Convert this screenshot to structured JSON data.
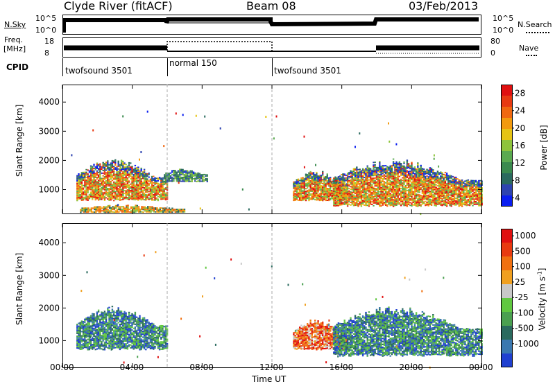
{
  "header": {
    "station": "Clyde River (fitACF)",
    "beam": "Beam 08",
    "date": "03/Feb/2013"
  },
  "top_panels": {
    "nsky_label": "N.Sky",
    "nsky_ticks": [
      "10^5",
      "10^0"
    ],
    "nsearch_label": "N.Search",
    "nsearch_ticks": [
      "10^5",
      "10^0"
    ],
    "freq_label_line1": "Freq.",
    "freq_label_line2": "[MHz]",
    "freq_ticks": [
      "18",
      "8"
    ],
    "nave_label": "Nave",
    "nave_ticks": [
      "80",
      "0"
    ],
    "cpid_label": "CPID"
  },
  "cpid_segments": [
    {
      "name": "twofsound 3501",
      "start_hour": 0,
      "end_hour": 6
    },
    {
      "name": "normal 150",
      "start_hour": 6,
      "end_hour": 12
    },
    {
      "name": "twofsound 3501",
      "start_hour": 12,
      "end_hour": 24
    }
  ],
  "chart_data": [
    {
      "type": "heatmap",
      "title": "",
      "xlabel": "Time UT",
      "ylabel": "Slant Range [km]",
      "xlim": [
        0,
        24
      ],
      "ylim": [
        180,
        4600
      ],
      "x_ticks": [
        "00:00",
        "04:00",
        "08:00",
        "12:00",
        "16:00",
        "20:00",
        "00:00"
      ],
      "y_ticks": [
        "1000",
        "2000",
        "3000",
        "4000"
      ],
      "colorbar": {
        "label": "Power [dB]",
        "ticks": [
          "28",
          "24",
          "20",
          "16",
          "12",
          "8",
          "4"
        ],
        "range": [
          0,
          30
        ],
        "colors": [
          "#0a1ef0",
          "#2e44b0",
          "#2a6a5e",
          "#3a8a4e",
          "#5aaa50",
          "#8ec43c",
          "#e6c414",
          "#f29a0e",
          "#f06810",
          "#e83a12",
          "#e01010"
        ]
      },
      "features": [
        {
          "start_hour": 0.8,
          "end_hour": 6.0,
          "range_km": [
            600,
            2050
          ],
          "level": "strong"
        },
        {
          "start_hour": 5.8,
          "end_hour": 8.3,
          "range_km": [
            1250,
            1700
          ],
          "level": "moderate"
        },
        {
          "start_hour": 13.2,
          "end_hour": 16.3,
          "range_km": [
            600,
            1650
          ],
          "level": "strong"
        },
        {
          "start_hour": 15.5,
          "end_hour": 24.0,
          "range_km": [
            400,
            2050
          ],
          "level": "strong"
        },
        {
          "start_hour": 1.0,
          "end_hour": 7.0,
          "range_km": [
            200,
            450
          ],
          "level": "weak"
        }
      ]
    },
    {
      "type": "heatmap",
      "title": "",
      "xlabel": "Time UT",
      "ylabel": "Slant Range [km]",
      "xlim": [
        0,
        24
      ],
      "ylim": [
        180,
        4600
      ],
      "x_ticks": [
        "00:00",
        "04:00",
        "08:00",
        "12:00",
        "16:00",
        "20:00",
        "00:00"
      ],
      "y_ticks": [
        "1000",
        "2000",
        "3000",
        "4000"
      ],
      "colorbar": {
        "label": "Velocity [m s",
        "label_superscript": "-1",
        "label_end": "]",
        "ticks": [
          "1000",
          "500",
          "100",
          "25",
          "-25",
          "-100",
          "-500",
          "-1000"
        ],
        "colors": [
          "#2040d0",
          "#3a78b0",
          "#2a6a5e",
          "#4aa050",
          "#60c840",
          "#c8c8c8",
          "#f0a020",
          "#f07010",
          "#e83a10",
          "#e01010"
        ]
      },
      "features": [
        {
          "start_hour": 0.8,
          "end_hour": 6.0,
          "range_km": [
            700,
            2050
          ],
          "level": "away"
        },
        {
          "start_hour": 13.2,
          "end_hour": 16.3,
          "range_km": [
            700,
            1650
          ],
          "level": "toward"
        },
        {
          "start_hour": 15.5,
          "end_hour": 24.0,
          "range_km": [
            500,
            2050
          ],
          "level": "away"
        }
      ]
    }
  ]
}
